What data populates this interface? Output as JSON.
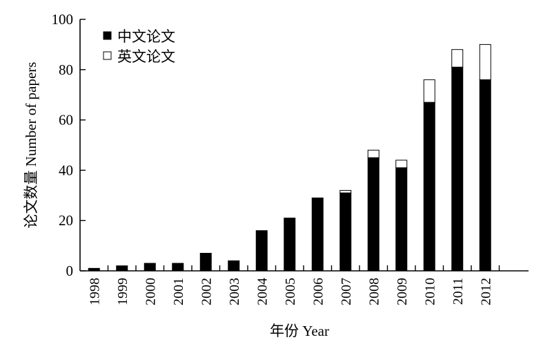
{
  "chart_data": {
    "type": "bar",
    "stacked": true,
    "categories": [
      "1998",
      "1999",
      "2000",
      "2001",
      "2002",
      "2003",
      "2004",
      "2005",
      "2006",
      "2007",
      "2008",
      "2009",
      "2010",
      "2011",
      "2012"
    ],
    "series": [
      {
        "name": "中文论文",
        "color": "#000000",
        "values": [
          1,
          2,
          3,
          3,
          7,
          4,
          16,
          21,
          29,
          31,
          45,
          41,
          67,
          81,
          76
        ]
      },
      {
        "name": "英文论文",
        "color": "#ffffff",
        "values": [
          0,
          0,
          0,
          0,
          0,
          0,
          0,
          0,
          0,
          1,
          3,
          3,
          9,
          7,
          14
        ]
      }
    ],
    "xlabel": "年份 Year",
    "ylabel": "论文数量 Number of papers",
    "ylim": [
      0,
      100
    ],
    "yticks": [
      0,
      20,
      40,
      60,
      80,
      100
    ],
    "legend_position": "top-left",
    "grid": false
  }
}
